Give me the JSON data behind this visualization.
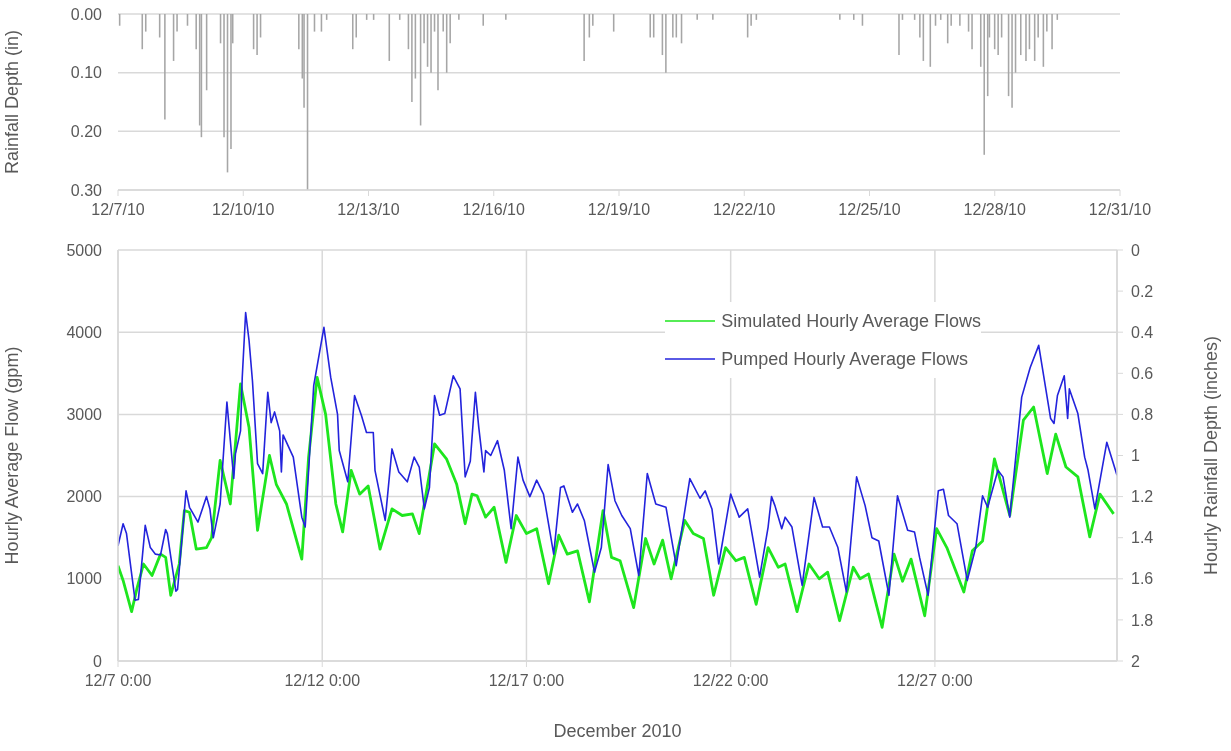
{
  "chart_data": [
    {
      "type": "bar",
      "ylabel": "Rainfall Depth (in)",
      "color": "#a6a6a6",
      "grid": "y",
      "x": [
        "2010-12-07T01:00",
        "2010-12-07T14:00",
        "2010-12-07T16:00",
        "2010-12-08T00:00",
        "2010-12-08T03:00",
        "2010-12-08T08:00",
        "2010-12-08T10:00",
        "2010-12-08T16:00",
        "2010-12-08T21:00",
        "2010-12-08T23:00",
        "2010-12-09T00:00",
        "2010-12-09T03:00",
        "2010-12-09T11:00",
        "2010-12-09T13:00",
        "2010-12-09T15:00",
        "2010-12-09T17:00",
        "2010-12-09T18:00",
        "2010-12-10T06:00",
        "2010-12-10T08:00",
        "2010-12-10T10:00",
        "2010-12-11T08:00",
        "2010-12-11T10:00",
        "2010-12-11T11:00",
        "2010-12-11T13:00",
        "2010-12-11T17:00",
        "2010-12-11T21:00",
        "2010-12-12T00:00",
        "2010-12-12T15:00",
        "2010-12-12T17:00",
        "2010-12-12T23:00",
        "2010-12-13T03:00",
        "2010-12-13T12:00",
        "2010-12-13T18:00",
        "2010-12-13T23:00",
        "2010-12-14T01:00",
        "2010-12-14T03:00",
        "2010-12-14T06:00",
        "2010-12-14T08:00",
        "2010-12-14T10:00",
        "2010-12-14T12:00",
        "2010-12-14T14:00",
        "2010-12-14T16:00",
        "2010-12-14T19:00",
        "2010-12-14T21:00",
        "2010-12-14T23:00",
        "2010-12-15T04:00",
        "2010-12-15T18:00",
        "2010-12-16T07:00",
        "2010-12-18T04:00",
        "2010-12-18T07:00",
        "2010-12-18T09:00",
        "2010-12-18T21:00",
        "2010-12-19T18:00",
        "2010-12-19T20:00",
        "2010-12-20T01:00",
        "2010-12-20T03:00",
        "2010-12-20T07:00",
        "2010-12-20T09:00",
        "2010-12-20T12:00",
        "2010-12-20T21:00",
        "2010-12-21T06:00",
        "2010-12-22T02:00",
        "2010-12-22T04:00",
        "2010-12-22T07:00",
        "2010-12-24T07:00",
        "2010-12-24T15:00",
        "2010-12-24T20:00",
        "2010-12-25T17:00",
        "2010-12-25T19:00",
        "2010-12-26T02:00",
        "2010-12-26T05:00",
        "2010-12-26T07:00",
        "2010-12-26T11:00",
        "2010-12-26T14:00",
        "2010-12-26T17:00",
        "2010-12-26T21:00",
        "2010-12-26T23:00",
        "2010-12-27T04:00",
        "2010-12-27T09:00",
        "2010-12-27T11:00",
        "2010-12-27T16:00",
        "2010-12-27T18:00",
        "2010-12-27T20:00",
        "2010-12-27T21:00",
        "2010-12-28T00:00",
        "2010-12-28T02:00",
        "2010-12-28T04:00",
        "2010-12-28T08:00",
        "2010-12-28T10:00",
        "2010-12-28T12:00",
        "2010-12-28T15:00",
        "2010-12-28T18:00",
        "2010-12-28T20:00",
        "2010-12-28T23:00",
        "2010-12-29T01:00",
        "2010-12-29T04:00",
        "2010-12-29T06:00",
        "2010-12-29T09:00",
        "2010-12-29T12:00"
      ],
      "values": [
        0.02,
        0.06,
        0.03,
        0.04,
        0.18,
        0.08,
        0.03,
        0.02,
        0.06,
        0.19,
        0.21,
        0.13,
        0.05,
        0.21,
        0.27,
        0.23,
        0.05,
        0.06,
        0.07,
        0.04,
        0.06,
        0.11,
        0.16,
        0.3,
        0.03,
        0.03,
        0.01,
        0.06,
        0.04,
        0.01,
        0.01,
        0.08,
        0.01,
        0.06,
        0.15,
        0.11,
        0.19,
        0.05,
        0.09,
        0.1,
        0.03,
        0.13,
        0.03,
        0.1,
        0.05,
        0.01,
        0.02,
        0.01,
        0.08,
        0.04,
        0.02,
        0.03,
        0.04,
        0.04,
        0.07,
        0.1,
        0.04,
        0.04,
        0.05,
        0.01,
        0.01,
        0.04,
        0.02,
        0.01,
        0.01,
        0.01,
        0.02,
        0.07,
        0.01,
        0.01,
        0.04,
        0.08,
        0.09,
        0.02,
        0.01,
        0.05,
        0.02,
        0.02,
        0.03,
        0.06,
        0.09,
        0.24,
        0.14,
        0.04,
        0.06,
        0.07,
        0.04,
        0.14,
        0.16,
        0.1,
        0.07,
        0.08,
        0.06,
        0.08,
        0.04,
        0.09,
        0.03,
        0.06,
        0.01
      ],
      "xlim": [
        "2010-12-07",
        "2010-12-31"
      ],
      "xticks": [
        {
          "value": "2010-12-07",
          "label": "12/7/10"
        },
        {
          "value": "2010-12-10",
          "label": "12/10/10"
        },
        {
          "value": "2010-12-13",
          "label": "12/13/10"
        },
        {
          "value": "2010-12-16",
          "label": "12/16/10"
        },
        {
          "value": "2010-12-19",
          "label": "12/19/10"
        },
        {
          "value": "2010-12-22",
          "label": "12/22/10"
        },
        {
          "value": "2010-12-25",
          "label": "12/25/10"
        },
        {
          "value": "2010-12-28",
          "label": "12/28/10"
        },
        {
          "value": "2010-12-31",
          "label": "12/31/10"
        }
      ],
      "ylim": [
        0.3,
        0
      ],
      "yticks": [
        {
          "value": 0,
          "label": "0.00"
        },
        {
          "value": 0.1,
          "label": "0.10"
        },
        {
          "value": 0.2,
          "label": "0.20"
        },
        {
          "value": 0.3,
          "label": "0.30"
        }
      ]
    },
    {
      "type": "line",
      "xlabel": "December 2010",
      "ylabel": "Hourly Average Flow (gpm)",
      "y2label": "Hourly Rainfall Depth (inches)",
      "grid": true,
      "legend": "top right",
      "xlim": [
        "2010-12-07T00:00",
        "2010-12-31T11:00"
      ],
      "xticks": [
        {
          "value": "2010-12-07T00:00",
          "label": "12/7 0:00"
        },
        {
          "value": "2010-12-12T00:00",
          "label": "12/12 0:00"
        },
        {
          "value": "2010-12-17T00:00",
          "label": "12/17 0:00"
        },
        {
          "value": "2010-12-22T00:00",
          "label": "12/22 0:00"
        },
        {
          "value": "2010-12-27T00:00",
          "label": "12/27 0:00"
        }
      ],
      "ylim": [
        0,
        5000
      ],
      "yticks": [
        0,
        1000,
        2000,
        3000,
        4000,
        5000
      ],
      "y2lim": [
        2,
        0
      ],
      "y2ticks": [
        0,
        0.2,
        0.4,
        0.6,
        0.8,
        1,
        1.2,
        1.4,
        1.6,
        1.8,
        2
      ],
      "series": [
        {
          "name": "Simulated Hourly Average Flows",
          "color": "#1ee61e",
          "x": [
            "2010-12-07T00:00",
            "2010-12-07T03:00",
            "2010-12-07T08:00",
            "2010-12-07T11:00",
            "2010-12-07T15:00",
            "2010-12-07T20:00",
            "2010-12-08T01:00",
            "2010-12-08T04:00",
            "2010-12-08T07:00",
            "2010-12-08T12:00",
            "2010-12-08T15:00",
            "2010-12-08T18:00",
            "2010-12-08T22:00",
            "2010-12-09T04:00",
            "2010-12-09T07:00",
            "2010-12-09T12:00",
            "2010-12-09T18:00",
            "2010-12-10T00:00",
            "2010-12-10T05:00",
            "2010-12-10T10:00",
            "2010-12-10T17:00",
            "2010-12-10T21:00",
            "2010-12-11T03:00",
            "2010-12-11T12:00",
            "2010-12-11T16:00",
            "2010-12-11T21:00",
            "2010-12-12T02:00",
            "2010-12-12T08:00",
            "2010-12-12T12:00",
            "2010-12-12T17:00",
            "2010-12-12T22:00",
            "2010-12-13T03:00",
            "2010-12-13T10:00",
            "2010-12-13T17:00",
            "2010-12-13T23:00",
            "2010-12-14T05:00",
            "2010-12-14T09:00",
            "2010-12-14T18:00",
            "2010-12-15T01:00",
            "2010-12-15T07:00",
            "2010-12-15T12:00",
            "2010-12-15T16:00",
            "2010-12-15T19:00",
            "2010-12-16T00:00",
            "2010-12-16T05:00",
            "2010-12-16T12:00",
            "2010-12-16T18:00",
            "2010-12-17T00:00",
            "2010-12-17T06:00",
            "2010-12-17T13:00",
            "2010-12-17T19:00",
            "2010-12-18T00:00",
            "2010-12-18T06:00",
            "2010-12-18T13:00",
            "2010-12-18T21:00",
            "2010-12-19T02:00",
            "2010-12-19T07:00",
            "2010-12-19T15:00",
            "2010-12-19T22:00",
            "2010-12-20T03:00",
            "2010-12-20T08:00",
            "2010-12-20T13:00",
            "2010-12-20T21:00",
            "2010-12-21T02:00",
            "2010-12-21T08:00",
            "2010-12-21T14:00",
            "2010-12-21T21:00",
            "2010-12-22T03:00",
            "2010-12-22T08:00",
            "2010-12-22T15:00",
            "2010-12-22T22:00",
            "2010-12-23T04:00",
            "2010-12-23T08:00",
            "2010-12-23T15:00",
            "2010-12-23T22:00",
            "2010-12-24T04:00",
            "2010-12-24T09:00",
            "2010-12-24T16:00",
            "2010-12-25T00:00",
            "2010-12-25T04:00",
            "2010-12-25T09:00",
            "2010-12-25T17:00",
            "2010-12-26T00:00",
            "2010-12-26T05:00",
            "2010-12-26T10:00",
            "2010-12-26T18:00",
            "2010-12-27T01:00",
            "2010-12-27T07:00",
            "2010-12-27T17:00",
            "2010-12-27T22:00",
            "2010-12-28T04:00",
            "2010-12-28T11:00",
            "2010-12-28T20:00",
            "2010-12-29T04:00",
            "2010-12-29T10:00",
            "2010-12-29T18:00",
            "2010-12-29T23:00",
            "2010-12-30T05:00",
            "2010-12-30T12:00",
            "2010-12-30T19:00",
            "2010-12-31T01:00",
            "2010-12-31T09:00"
          ],
          "values": [
            1160,
            980,
            600,
            870,
            1180,
            1040,
            1300,
            1260,
            800,
            1180,
            1830,
            1810,
            1360,
            1380,
            1500,
            2440,
            1910,
            3370,
            2840,
            1590,
            2500,
            2150,
            1910,
            1240,
            2480,
            3450,
            3000,
            1910,
            1570,
            2320,
            2030,
            2130,
            1360,
            1850,
            1770,
            1790,
            1550,
            2640,
            2460,
            2150,
            1670,
            2030,
            2010,
            1750,
            1870,
            1200,
            1770,
            1550,
            1610,
            940,
            1530,
            1300,
            1340,
            720,
            1830,
            1260,
            1220,
            650,
            1490,
            1180,
            1470,
            1000,
            1710,
            1550,
            1490,
            800,
            1380,
            1220,
            1260,
            690,
            1380,
            1140,
            1180,
            600,
            1180,
            1000,
            1080,
            490,
            1140,
            1000,
            1060,
            410,
            1300,
            970,
            1240,
            550,
            1610,
            1380,
            840,
            1340,
            1460,
            2460,
            1770,
            2930,
            3090,
            2280,
            2760,
            2360,
            2240,
            1510,
            2030,
            1790
          ]
        },
        {
          "name": "Pumped Hourly Average Flows",
          "color": "#2323dc",
          "x": [
            "2010-12-07T00:00",
            "2010-12-07T03:00",
            "2010-12-07T05:00",
            "2010-12-07T10:00",
            "2010-12-07T12:00",
            "2010-12-07T16:00",
            "2010-12-07T19:00",
            "2010-12-07T22:00",
            "2010-12-08T01:00",
            "2010-12-08T04:00",
            "2010-12-08T05:00",
            "2010-12-08T10:00",
            "2010-12-08T11:00",
            "2010-12-08T16:00",
            "2010-12-08T18:00",
            "2010-12-08T23:00",
            "2010-12-09T04:00",
            "2010-12-09T06:00",
            "2010-12-09T08:00",
            "2010-12-09T12:00",
            "2010-12-09T16:00",
            "2010-12-09T20:00",
            "2010-12-09T21:00",
            "2010-12-10T00:00",
            "2010-12-10T01:00",
            "2010-12-10T03:00",
            "2010-12-10T05:00",
            "2010-12-10T07:00",
            "2010-12-10T10:00",
            "2010-12-10T13:00",
            "2010-12-10T16:00",
            "2010-12-10T18:00",
            "2010-12-10T20:00",
            "2010-12-10T23:00",
            "2010-12-11T00:00",
            "2010-12-11T01:00",
            "2010-12-11T07:00",
            "2010-12-11T12:00",
            "2010-12-11T14:00",
            "2010-12-11T19:00",
            "2010-12-12T01:00",
            "2010-12-12T05:00",
            "2010-12-12T09:00",
            "2010-12-12T10:00",
            "2010-12-12T15:00",
            "2010-12-12T19:00",
            "2010-12-12T23:00",
            "2010-12-13T02:00",
            "2010-12-13T06:00",
            "2010-12-13T07:00",
            "2010-12-13T13:00",
            "2010-12-13T17:00",
            "2010-12-13T21:00",
            "2010-12-14T02:00",
            "2010-12-14T06:00",
            "2010-12-14T09:00",
            "2010-12-14T12:00",
            "2010-12-14T15:00",
            "2010-12-14T18:00",
            "2010-12-14T21:00",
            "2010-12-15T00:00",
            "2010-12-15T05:00",
            "2010-12-15T09:00",
            "2010-12-15T12:00",
            "2010-12-15T15:00",
            "2010-12-15T18:00",
            "2010-12-15T20:00",
            "2010-12-15T23:00",
            "2010-12-16T00:00",
            "2010-12-16T03:00",
            "2010-12-16T07:00",
            "2010-12-16T11:00",
            "2010-12-16T15:00",
            "2010-12-16T19:00",
            "2010-12-16T22:00",
            "2010-12-17T02:00",
            "2010-12-17T06:00",
            "2010-12-17T10:00",
            "2010-12-17T16:00",
            "2010-12-17T20:00",
            "2010-12-17T22:00",
            "2010-12-18T03:00",
            "2010-12-18T06:00",
            "2010-12-18T10:00",
            "2010-12-18T16:00",
            "2010-12-18T20:00",
            "2010-12-19T00:00",
            "2010-12-19T04:00",
            "2010-12-19T08:00",
            "2010-12-19T13:00",
            "2010-12-19T18:00",
            "2010-12-19T23:00",
            "2010-12-20T04:00",
            "2010-12-20T10:00",
            "2010-12-20T16:00",
            "2010-12-21T00:00",
            "2010-12-21T06:00",
            "2010-12-21T09:00",
            "2010-12-21T13:00",
            "2010-12-21T17:00",
            "2010-12-22T00:00",
            "2010-12-22T05:00",
            "2010-12-22T10:00",
            "2010-12-22T17:00",
            "2010-12-22T22:00",
            "2010-12-23T00:00",
            "2010-12-23T02:00",
            "2010-12-23T06:00",
            "2010-12-23T08:00",
            "2010-12-23T12:00",
            "2010-12-23T18:00",
            "2010-12-24T01:00",
            "2010-12-24T06:00",
            "2010-12-24T10:00",
            "2010-12-24T15:00",
            "2010-12-24T20:00",
            "2010-12-25T02:00",
            "2010-12-25T07:00",
            "2010-12-25T11:00",
            "2010-12-25T15:00",
            "2010-12-25T21:00",
            "2010-12-26T02:00",
            "2010-12-26T08:00",
            "2010-12-26T12:00",
            "2010-12-26T15:00",
            "2010-12-26T20:00",
            "2010-12-27T02:00",
            "2010-12-27T05:00",
            "2010-12-27T08:00",
            "2010-12-27T13:00",
            "2010-12-27T19:00",
            "2010-12-28T00:00",
            "2010-12-28T04:00",
            "2010-12-28T07:00",
            "2010-12-28T13:00",
            "2010-12-28T16:00",
            "2010-12-28T20:00",
            "2010-12-29T03:00",
            "2010-12-29T08:00",
            "2010-12-29T13:00",
            "2010-12-29T20:00",
            "2010-12-29T22:00",
            "2010-12-30T00:00",
            "2010-12-30T04:00",
            "2010-12-30T06:00",
            "2010-12-30T07:00",
            "2010-12-30T12:00",
            "2010-12-30T16:00",
            "2010-12-30T18:00",
            "2010-12-30T22:00",
            "2010-12-31T05:00",
            "2010-12-31T11:00"
          ],
          "values": [
            1400,
            1670,
            1550,
            740,
            750,
            1650,
            1380,
            1300,
            1290,
            1600,
            1550,
            850,
            870,
            2070,
            1870,
            1690,
            2000,
            1850,
            1500,
            1910,
            3150,
            2220,
            2520,
            2800,
            3450,
            4240,
            3900,
            3410,
            2400,
            2280,
            3270,
            2900,
            3030,
            2800,
            2300,
            2750,
            2480,
            1750,
            1630,
            3350,
            4060,
            3450,
            3000,
            2560,
            2180,
            3230,
            2990,
            2780,
            2780,
            2320,
            1710,
            2580,
            2300,
            2180,
            2480,
            2360,
            1850,
            2110,
            3230,
            2990,
            3010,
            3470,
            3310,
            2240,
            2430,
            3270,
            2840,
            2300,
            2560,
            2500,
            2680,
            2320,
            1610,
            2480,
            2200,
            2000,
            2200,
            2030,
            1300,
            2110,
            2130,
            1810,
            1910,
            1710,
            1080,
            1380,
            2390,
            1950,
            1770,
            1610,
            1040,
            2280,
            1910,
            1870,
            1160,
            2220,
            1980,
            2070,
            1850,
            1180,
            2030,
            1750,
            1850,
            1020,
            1630,
            2000,
            1890,
            1610,
            1750,
            1630,
            920,
            1990,
            1630,
            1630,
            1380,
            840,
            2240,
            1890,
            1500,
            1460,
            800,
            2010,
            1590,
            1570,
            1260,
            800,
            2070,
            2090,
            1770,
            1670,
            980,
            1380,
            2010,
            1870,
            2320,
            2240,
            1750,
            3210,
            3570,
            3840,
            2950,
            2890,
            3230,
            3470,
            2950,
            3310,
            3010,
            2480,
            2320,
            1850,
            2660,
            2260
          ]
        }
      ]
    }
  ]
}
